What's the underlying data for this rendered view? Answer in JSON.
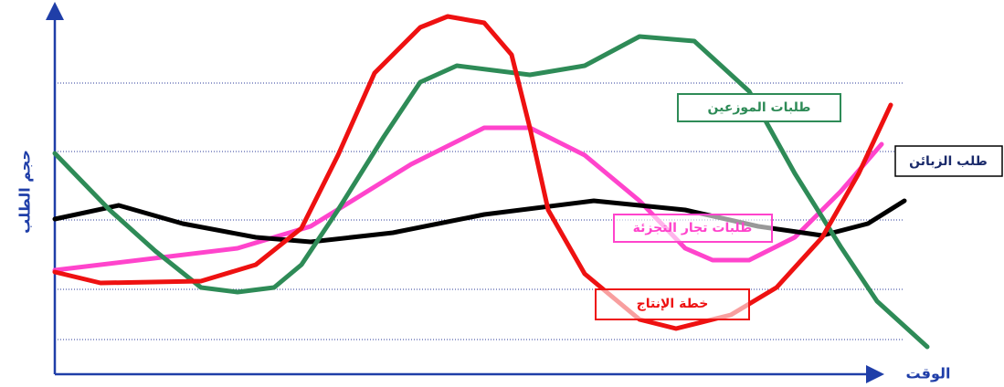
{
  "y_axis_label": "حجم الطلب",
  "x_axis_label": "الوقت",
  "labels": {
    "distributors": "طلبات الموزعين",
    "customers": "طلب الزبائن",
    "retailers": "طلبات تجار التجزئة",
    "production": "خطة الإنتاج"
  }
}
